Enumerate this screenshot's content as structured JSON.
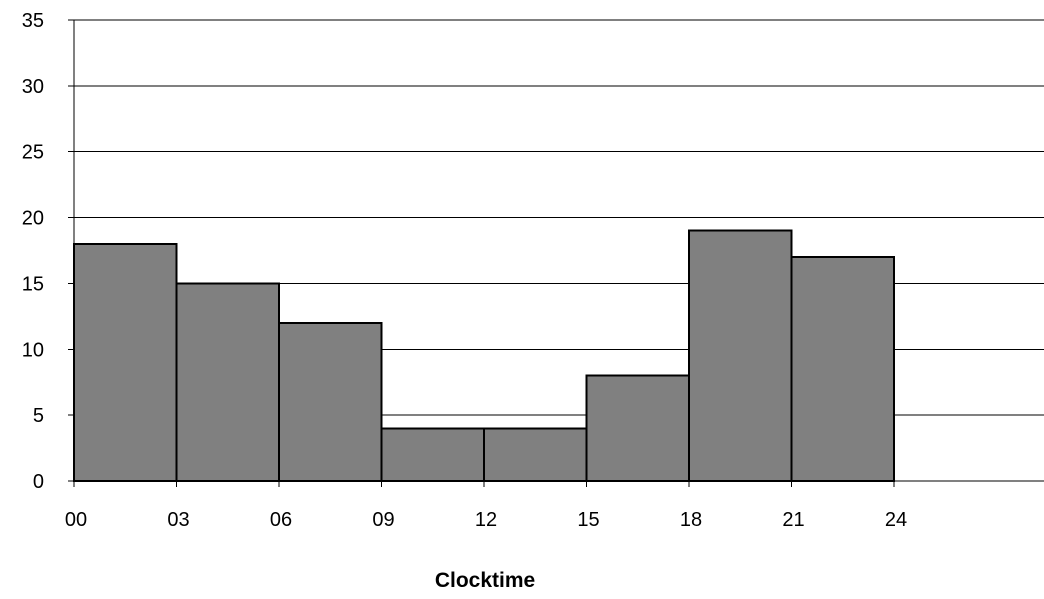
{
  "chart_data": {
    "type": "bar",
    "title": "",
    "xlabel": "Clocktime",
    "ylabel": "",
    "x_tick_labels": [
      "00",
      "03",
      "06",
      "09",
      "12",
      "15",
      "18",
      "21",
      "24"
    ],
    "y_tick_labels": [
      "0",
      "5",
      "10",
      "15",
      "20",
      "25",
      "30",
      "35"
    ],
    "bins": [
      {
        "start": 0,
        "end": 3,
        "value": 18
      },
      {
        "start": 3,
        "end": 6,
        "value": 15
      },
      {
        "start": 6,
        "end": 9,
        "value": 12
      },
      {
        "start": 9,
        "end": 12,
        "value": 4
      },
      {
        "start": 12,
        "end": 15,
        "value": 4
      },
      {
        "start": 15,
        "end": 18,
        "value": 8
      },
      {
        "start": 18,
        "end": 21,
        "value": 19
      },
      {
        "start": 21,
        "end": 24,
        "value": 17
      }
    ],
    "ylim": [
      0,
      35
    ],
    "xlim": [
      0,
      24
    ],
    "grid": true,
    "legend": false,
    "bar_color": "#808080"
  }
}
